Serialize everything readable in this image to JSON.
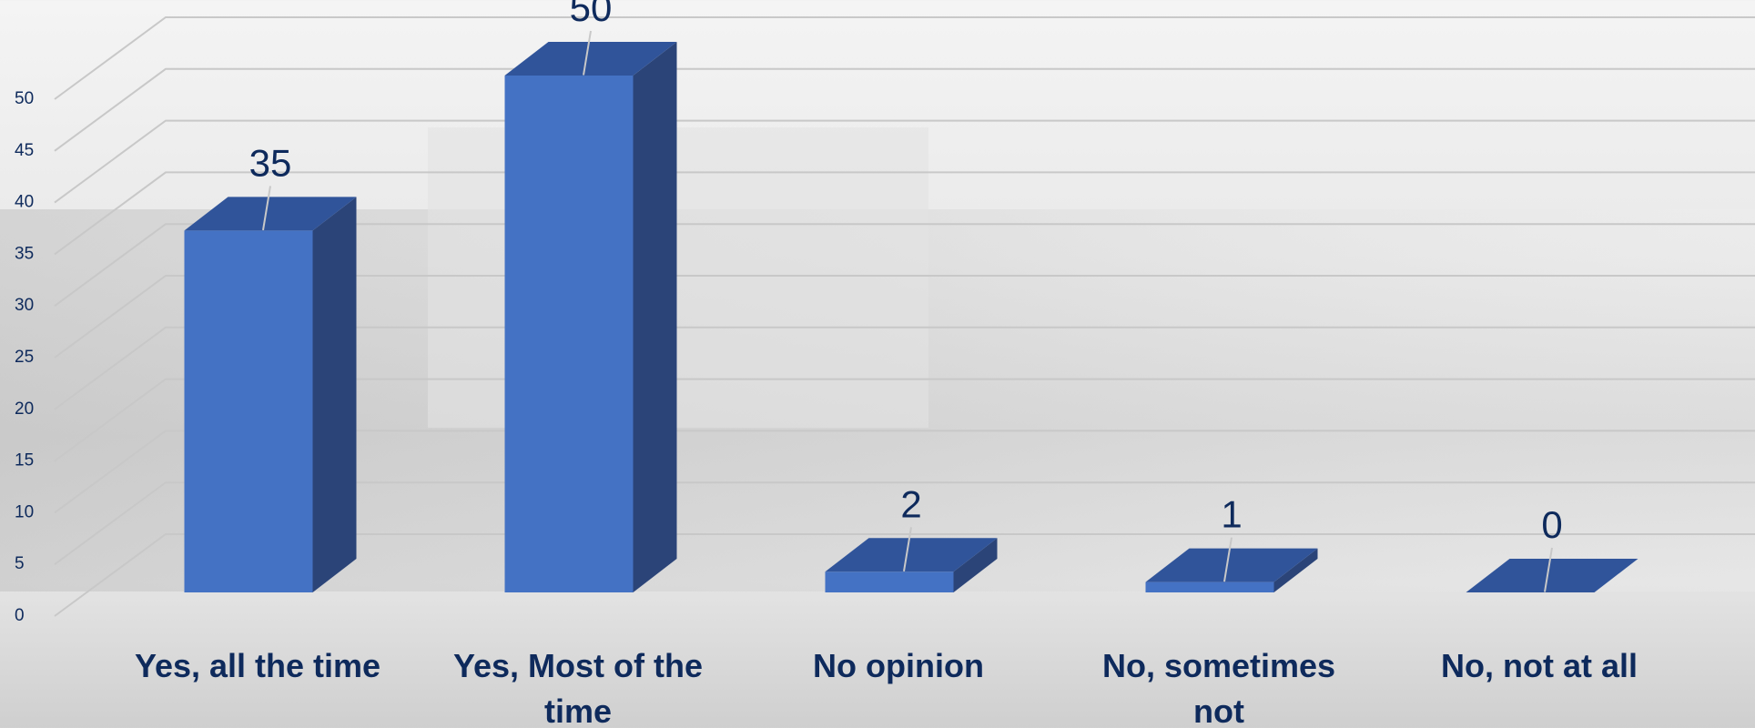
{
  "chart_data": {
    "type": "bar3d",
    "categories": [
      "Yes, all the time",
      "Yes, Most of the time",
      "No opinion",
      "No, sometimes not",
      "No, not at all"
    ],
    "values": [
      35,
      50,
      2,
      1,
      0
    ],
    "color": "#4472c4",
    "ylim": [
      0,
      50
    ],
    "yticks": [
      0,
      5,
      10,
      15,
      20,
      25,
      30,
      35,
      40,
      45,
      50
    ],
    "grid": true
  }
}
